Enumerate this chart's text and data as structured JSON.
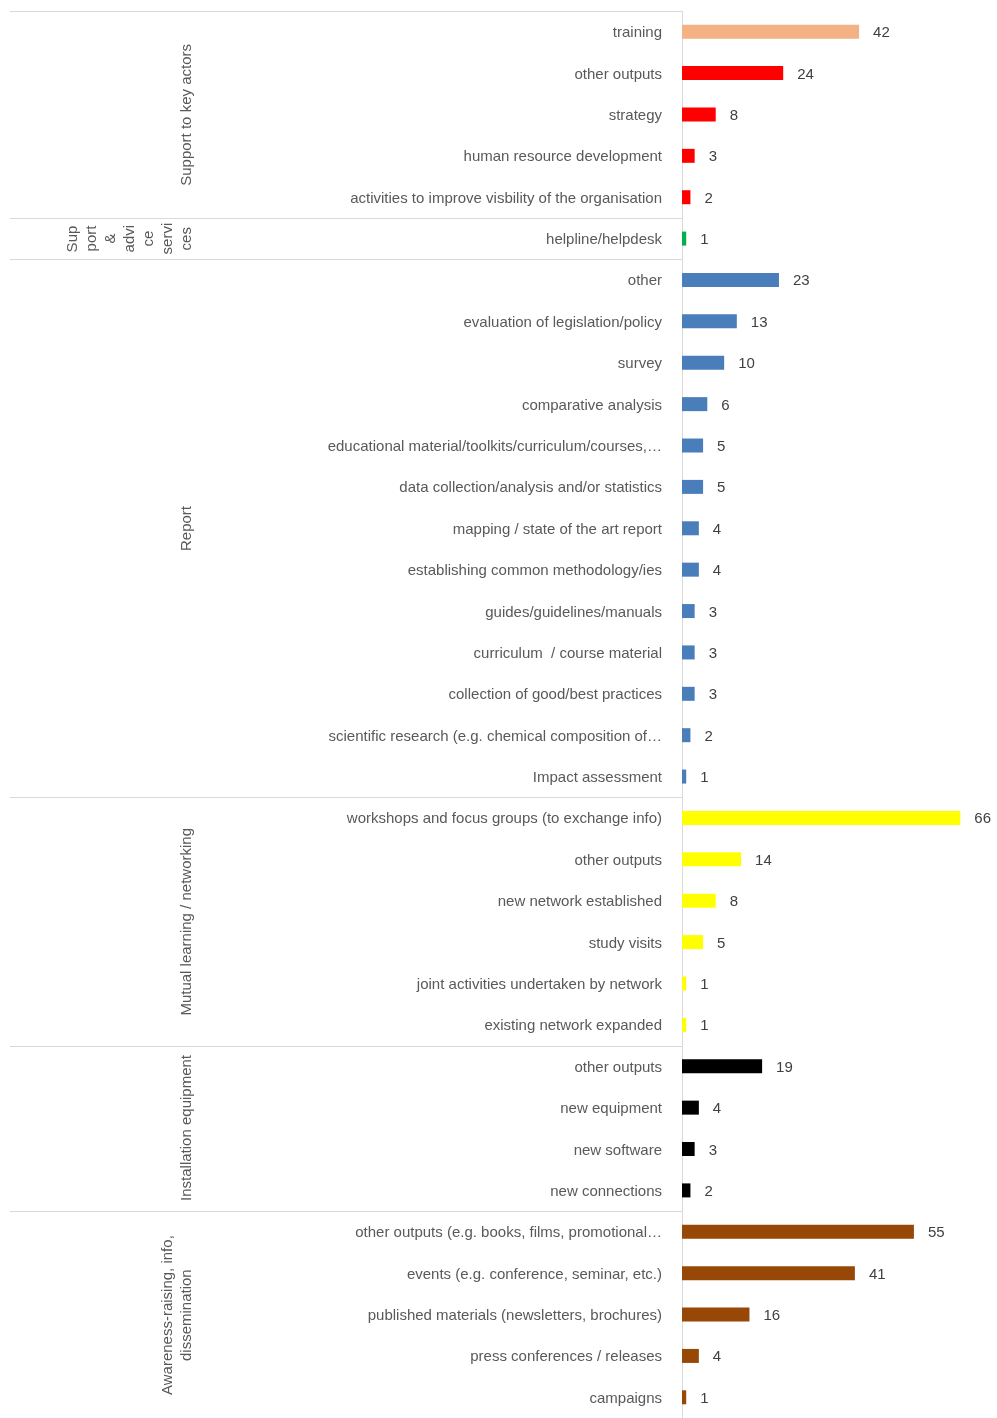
{
  "chart_data": {
    "type": "bar",
    "orientation": "horizontal",
    "data_labels": true,
    "annotations": [
      "Support to key actors",
      "Support & advice services",
      "Report",
      "Mutual learning / networking",
      "Installation equipment",
      "Awareness-raising, info, dissemination"
    ],
    "categories": [
      "training",
      "other outputs",
      "strategy",
      "human resource development",
      "activities to improve visbility of the organisation",
      "helpline/helpdesk",
      "other",
      "evaluation of legislation/policy",
      "survey",
      "comparative analysis",
      "educational material/toolkits/curriculum/courses,…",
      "data collection/analysis and/or statistics",
      "mapping / state of the art report",
      "establishing common methodology/ies",
      "guides/guidelines/manuals",
      "curriculum  / course material",
      "collection of good/best practices",
      "scientific research (e.g. chemical composition of…",
      "Impact assessment",
      "workshops and focus groups (to exchange info)",
      "other outputs",
      "new network established",
      "study visits",
      "joint activities undertaken by network",
      "existing network expanded",
      "other outputs",
      "new equipment",
      "new software",
      "new connections",
      "other outputs (e.g. books, films, promotional…",
      "events (e.g. conference, seminar, etc.)",
      "published materials (newsletters, brochures)",
      "press conferences / releases",
      "campaigns"
    ],
    "series": [
      {
        "color": "#ff0000",
        "colors": [
          "#f4b183",
          "#ff0000",
          "#ff0000",
          "#ff0000",
          "#ff0000",
          null,
          null,
          null,
          null,
          null,
          null,
          null,
          null,
          null,
          null,
          null,
          null,
          null,
          null,
          null,
          null,
          null,
          null,
          null,
          null,
          null,
          null,
          null,
          null,
          null,
          null,
          null,
          null,
          null
        ],
        "values": [
          42,
          24,
          8,
          3,
          2,
          null,
          null,
          null,
          null,
          null,
          null,
          null,
          null,
          null,
          null,
          null,
          null,
          null,
          null,
          null,
          null,
          null,
          null,
          null,
          null,
          null,
          null,
          null,
          null,
          null,
          null,
          null,
          null,
          null
        ]
      },
      {
        "color": "#00b050",
        "values": [
          null,
          null,
          null,
          null,
          null,
          1,
          null,
          null,
          null,
          null,
          null,
          null,
          null,
          null,
          null,
          null,
          null,
          null,
          null,
          null,
          null,
          null,
          null,
          null,
          null,
          null,
          null,
          null,
          null,
          null,
          null,
          null,
          null,
          null
        ]
      },
      {
        "color": "#4a7ebb",
        "values": [
          null,
          null,
          null,
          null,
          null,
          null,
          23,
          13,
          10,
          6,
          5,
          5,
          4,
          4,
          3,
          3,
          3,
          2,
          1,
          null,
          null,
          null,
          null,
          null,
          null,
          null,
          null,
          null,
          null,
          null,
          null,
          null,
          null,
          null
        ]
      },
      {
        "color": "#ffff00",
        "values": [
          null,
          null,
          null,
          null,
          null,
          null,
          null,
          null,
          null,
          null,
          null,
          null,
          null,
          null,
          null,
          null,
          null,
          null,
          null,
          66,
          14,
          8,
          5,
          1,
          1,
          null,
          null,
          null,
          null,
          null,
          null,
          null,
          null,
          null
        ]
      },
      {
        "color": "#000000",
        "values": [
          null,
          null,
          null,
          null,
          null,
          null,
          null,
          null,
          null,
          null,
          null,
          null,
          null,
          null,
          null,
          null,
          null,
          null,
          null,
          null,
          null,
          null,
          null,
          null,
          null,
          19,
          4,
          3,
          2,
          null,
          null,
          null,
          null,
          null
        ]
      },
      {
        "color": "#974806",
        "values": [
          null,
          null,
          null,
          null,
          null,
          null,
          null,
          null,
          null,
          null,
          null,
          null,
          null,
          null,
          null,
          null,
          null,
          null,
          null,
          null,
          null,
          null,
          null,
          null,
          null,
          null,
          null,
          null,
          null,
          55,
          41,
          16,
          4,
          1
        ]
      }
    ]
  }
}
